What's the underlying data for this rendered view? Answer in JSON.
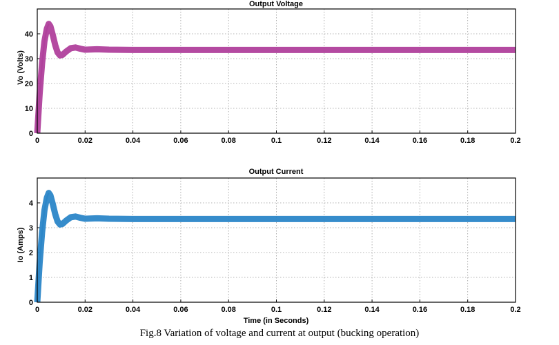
{
  "caption": "Fig.8 Variation of voltage and current at output (bucking operation)",
  "chart_data": [
    {
      "type": "line",
      "title": "Output Voltage",
      "xlabel": "",
      "ylabel": "Vo (Volts)",
      "xlim": [
        0,
        0.2
      ],
      "ylim": [
        0,
        50
      ],
      "xticks": [
        "0",
        "0.02",
        "0.04",
        "0.06",
        "0.08",
        "0.1",
        "0.12",
        "0.14",
        "0.16",
        "0.18",
        "0.2"
      ],
      "yticks": [
        "0",
        "10",
        "20",
        "30",
        "40"
      ],
      "grid": true,
      "color": "#b0409c",
      "series": [
        {
          "x": [
            0,
            0.001,
            0.002,
            0.003,
            0.004,
            0.0048,
            0.0055,
            0.0065,
            0.0075,
            0.0085,
            0.0095,
            0.0105,
            0.012,
            0.014,
            0.016,
            0.018,
            0.02,
            0.025,
            0.03,
            0.04,
            0.06,
            0.1,
            0.15,
            0.2
          ],
          "y": [
            0,
            16,
            28,
            37,
            42,
            44,
            43,
            39.5,
            35.5,
            32.5,
            31.3,
            31.5,
            32.8,
            34.2,
            34.5,
            34.0,
            33.6,
            33.8,
            33.6,
            33.5,
            33.5,
            33.5,
            33.5,
            33.5
          ]
        }
      ]
    },
    {
      "type": "line",
      "title": "Output Current",
      "xlabel": "Time (in Seconds)",
      "ylabel": "Io (Amps)",
      "xlim": [
        0,
        0.2
      ],
      "ylim": [
        0,
        5
      ],
      "xticks": [
        "0",
        "0.02",
        "0.04",
        "0.06",
        "0.08",
        "0.1",
        "0.12",
        "0.14",
        "0.16",
        "0.18",
        "0.2"
      ],
      "yticks": [
        "0",
        "1",
        "2",
        "3",
        "4"
      ],
      "grid": true,
      "color": "#2b86c8",
      "series": [
        {
          "x": [
            0,
            0.001,
            0.002,
            0.003,
            0.004,
            0.0048,
            0.0055,
            0.0065,
            0.0075,
            0.0085,
            0.0095,
            0.0105,
            0.012,
            0.014,
            0.016,
            0.018,
            0.02,
            0.025,
            0.03,
            0.04,
            0.06,
            0.1,
            0.15,
            0.2
          ],
          "y": [
            0,
            1.6,
            2.8,
            3.7,
            4.2,
            4.4,
            4.3,
            3.95,
            3.55,
            3.25,
            3.13,
            3.15,
            3.28,
            3.42,
            3.45,
            3.4,
            3.36,
            3.38,
            3.36,
            3.35,
            3.35,
            3.35,
            3.35,
            3.35
          ]
        }
      ]
    }
  ]
}
